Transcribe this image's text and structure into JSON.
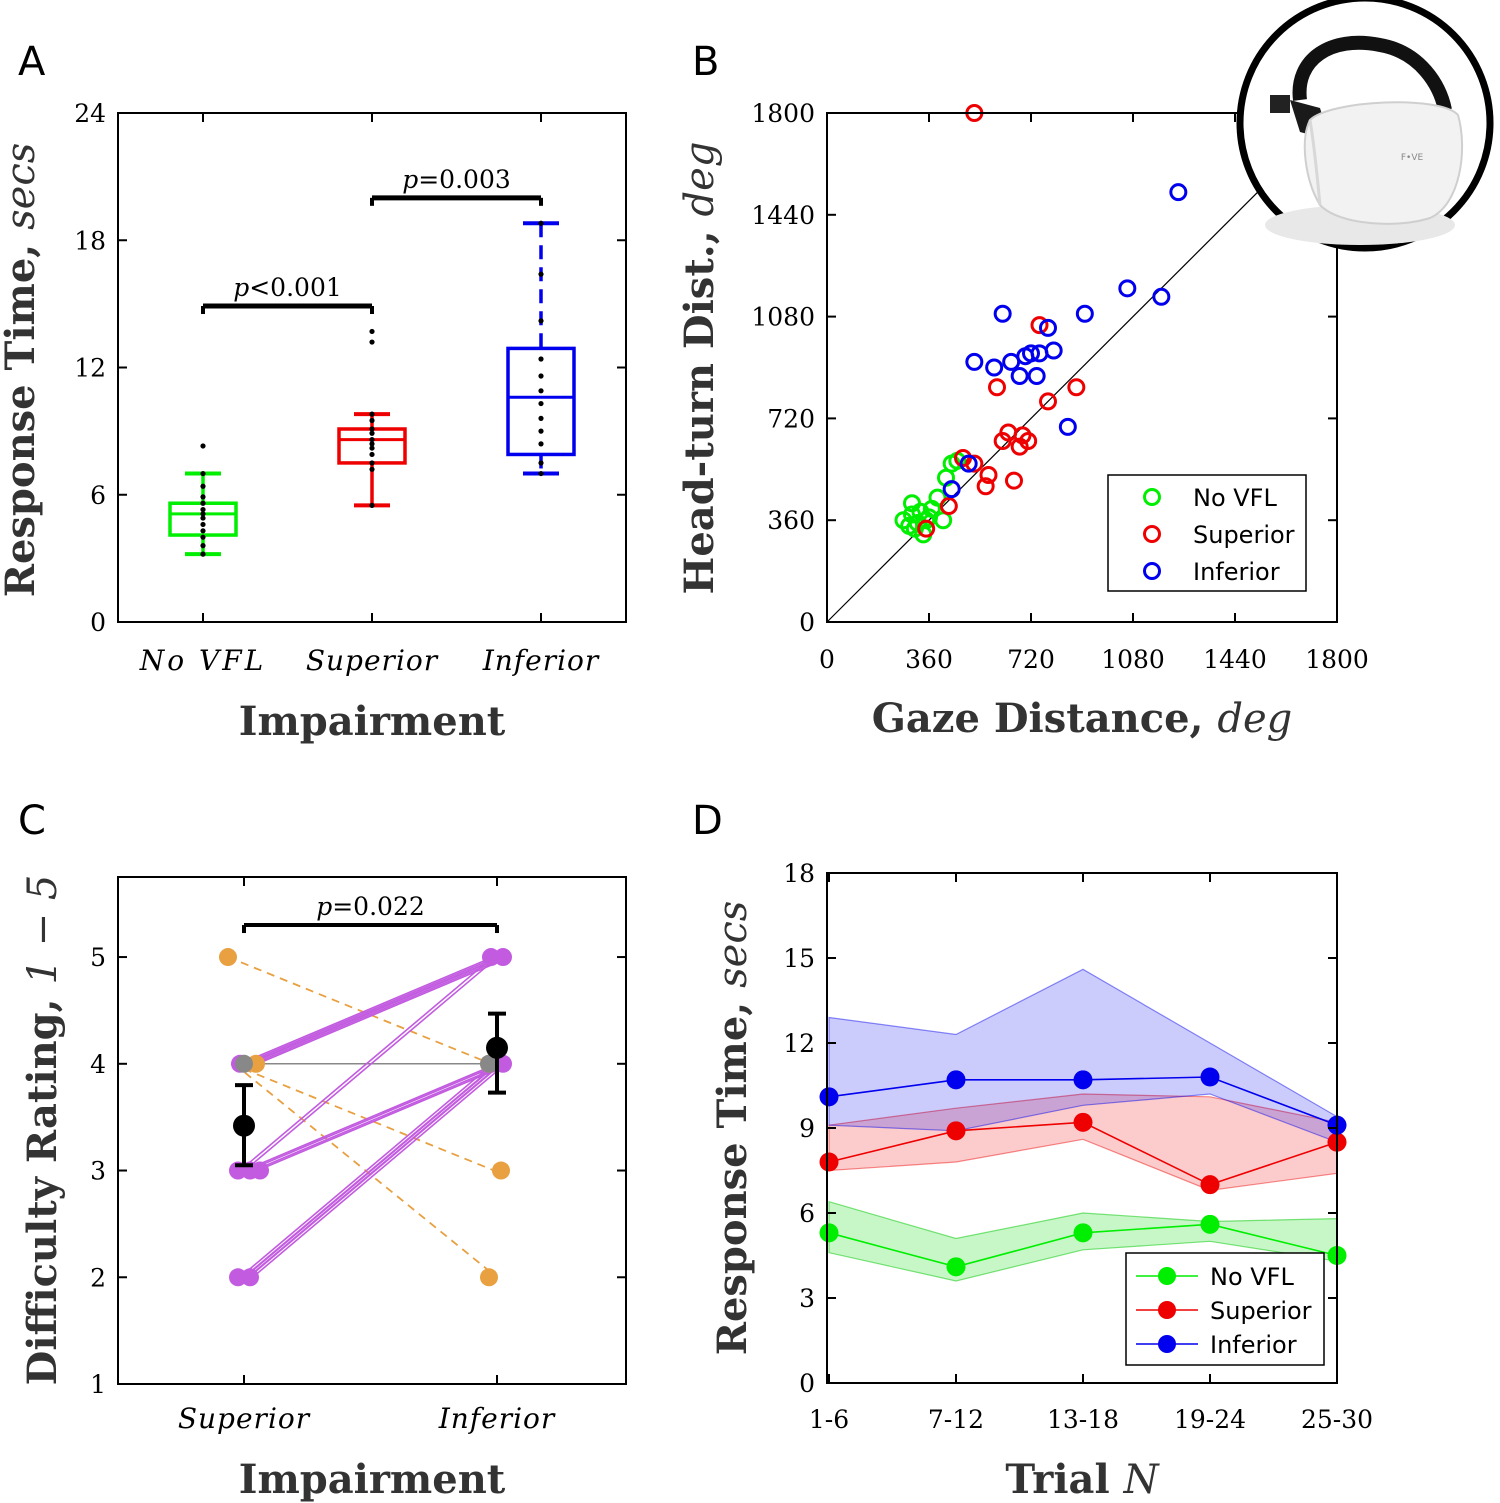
{
  "colors": {
    "green": "#00ee00",
    "red": "#ee0000",
    "blue": "#0000ee",
    "purple": "#c25be0",
    "orange": "#e8a040",
    "black": "#000000"
  },
  "chart_data": [
    {
      "panel": "A",
      "type": "box",
      "ylabel": "Response Time, ",
      "ylabel_unit": "secs",
      "xlabel": "Impairment",
      "ylim": [
        0,
        24
      ],
      "yticks": [
        "0",
        "6",
        "12",
        "18",
        "24"
      ],
      "categories": [
        "No VFL",
        "Superior",
        "Inferior"
      ],
      "boxes": [
        {
          "name": "No VFL",
          "color": "green",
          "whisker_low": 3.2,
          "q1": 4.1,
          "median": 5.1,
          "q3": 5.6,
          "whisker_high": 7.0,
          "points": [
            3.2,
            3.6,
            4.0,
            4.3,
            4.6,
            4.9,
            5.1,
            5.3,
            5.6,
            5.9,
            6.4,
            7.0,
            8.3
          ]
        },
        {
          "name": "Superior",
          "color": "red",
          "whisker_low": 5.5,
          "q1": 7.5,
          "median": 8.6,
          "q3": 9.1,
          "whisker_high": 9.8,
          "points": [
            5.5,
            7.2,
            7.5,
            7.9,
            8.2,
            8.4,
            8.6,
            8.9,
            9.1,
            9.5,
            9.8,
            13.2,
            13.7
          ]
        },
        {
          "name": "Inferior",
          "color": "blue",
          "whisker_low": 7.0,
          "q1": 7.9,
          "median": 10.6,
          "q3": 12.9,
          "whisker_high": 18.8,
          "points": [
            7.0,
            7.5,
            8.4,
            9.0,
            9.6,
            10.3,
            10.9,
            11.6,
            12.4,
            14.2,
            16.4,
            18.8
          ]
        }
      ],
      "comparisons": [
        {
          "from": "No VFL",
          "to": "Superior",
          "label": "p<0.001",
          "y": 14.9
        },
        {
          "from": "Superior",
          "to": "Inferior",
          "label": "p=0.003",
          "y": 20.0
        }
      ]
    },
    {
      "panel": "B",
      "type": "scatter",
      "xlabel": "Gaze Distance, ",
      "xlabel_unit": "deg",
      "ylabel": "Head-turn Dist., ",
      "ylabel_unit": "deg",
      "xlim": [
        0,
        1800
      ],
      "ylim": [
        0,
        1800
      ],
      "xticks": [
        "0",
        "360",
        "720",
        "1080",
        "1440",
        "1800"
      ],
      "yticks": [
        "0",
        "360",
        "720",
        "1080",
        "1440",
        "1800"
      ],
      "reference_line": "y = x",
      "legend": [
        "No VFL",
        "Superior",
        "Inferior"
      ],
      "series": [
        {
          "name": "No VFL",
          "color": "green",
          "points": [
            [
              270,
              360
            ],
            [
              290,
              340
            ],
            [
              310,
              330
            ],
            [
              300,
              420
            ],
            [
              330,
              390
            ],
            [
              340,
              310
            ],
            [
              350,
              360
            ],
            [
              370,
              400
            ],
            [
              390,
              440
            ],
            [
              410,
              360
            ],
            [
              420,
              510
            ],
            [
              440,
              560
            ],
            [
              460,
              570
            ],
            [
              300,
              380
            ],
            [
              320,
              350
            ],
            [
              360,
              370
            ]
          ]
        },
        {
          "name": "Superior",
          "color": "red",
          "points": [
            [
              520,
              1800
            ],
            [
              350,
              330
            ],
            [
              430,
              410
            ],
            [
              480,
              580
            ],
            [
              520,
              560
            ],
            [
              560,
              480
            ],
            [
              570,
              520
            ],
            [
              600,
              830
            ],
            [
              620,
              640
            ],
            [
              640,
              670
            ],
            [
              660,
              500
            ],
            [
              680,
              620
            ],
            [
              690,
              660
            ],
            [
              710,
              640
            ],
            [
              750,
              1050
            ],
            [
              780,
              780
            ],
            [
              880,
              830
            ]
          ]
        },
        {
          "name": "Inferior",
          "color": "blue",
          "points": [
            [
              440,
              470
            ],
            [
              500,
              560
            ],
            [
              520,
              920
            ],
            [
              590,
              900
            ],
            [
              620,
              1090
            ],
            [
              650,
              920
            ],
            [
              680,
              870
            ],
            [
              700,
              940
            ],
            [
              720,
              950
            ],
            [
              740,
              870
            ],
            [
              750,
              950
            ],
            [
              780,
              1040
            ],
            [
              800,
              960
            ],
            [
              850,
              690
            ],
            [
              910,
              1090
            ],
            [
              1060,
              1180
            ],
            [
              1180,
              1150
            ],
            [
              1240,
              1520
            ]
          ]
        }
      ],
      "inset_brand": "F•VE"
    },
    {
      "panel": "C",
      "type": "paired-dot",
      "ylabel": "Difficulty Rating, ",
      "ylabel_range": "1 − 5",
      "xlabel": "Impairment",
      "ylim": [
        1,
        5.75
      ],
      "yticks": [
        "1",
        "2",
        "3",
        "4",
        "5"
      ],
      "categories": [
        "Superior",
        "Inferior"
      ],
      "pairs_increase": [
        [
          4,
          5
        ],
        [
          4,
          5
        ],
        [
          4,
          5
        ],
        [
          3,
          5
        ],
        [
          3,
          4
        ],
        [
          3,
          4
        ],
        [
          2,
          4
        ],
        [
          2,
          4
        ],
        [
          2,
          4
        ],
        [
          4,
          4
        ]
      ],
      "pairs_decrease": [
        [
          5,
          4
        ],
        [
          4,
          3
        ],
        [
          4,
          2
        ],
        [
          4,
          4
        ]
      ],
      "means": [
        {
          "category": "Superior",
          "mean": 3.42,
          "low": 3.05,
          "high": 3.8
        },
        {
          "category": "Inferior",
          "mean": 4.15,
          "low": 3.73,
          "high": 4.47
        }
      ],
      "comparison": {
        "label": "p=0.022",
        "y": 5.3
      }
    },
    {
      "panel": "D",
      "type": "line",
      "xlabel": "Trial ",
      "xlabel_unit": "N",
      "ylabel": "Response Time, ",
      "ylabel_unit": "secs",
      "categories": [
        "1-6",
        "7-12",
        "13-18",
        "19-24",
        "25-30"
      ],
      "ylim": [
        0,
        18
      ],
      "yticks": [
        "0",
        "3",
        "6",
        "9",
        "12",
        "15",
        "18"
      ],
      "legend": [
        "No VFL",
        "Superior",
        "Inferior"
      ],
      "series": [
        {
          "name": "No VFL",
          "color": "green",
          "values": [
            5.3,
            4.1,
            5.3,
            5.6,
            4.5
          ],
          "low": [
            4.6,
            3.6,
            4.7,
            5.0,
            4.3
          ],
          "high": [
            6.4,
            5.1,
            6.0,
            5.7,
            5.8
          ]
        },
        {
          "name": "Superior",
          "color": "red",
          "values": [
            7.8,
            8.9,
            9.2,
            7.0,
            8.5
          ],
          "low": [
            7.5,
            7.8,
            8.6,
            6.8,
            7.4
          ],
          "high": [
            9.1,
            9.7,
            10.2,
            10.1,
            9.2
          ]
        },
        {
          "name": "Inferior",
          "color": "blue",
          "values": [
            10.1,
            10.7,
            10.7,
            10.8,
            9.1
          ],
          "low": [
            9.1,
            8.9,
            9.8,
            10.2,
            8.5
          ],
          "high": [
            12.9,
            12.3,
            14.6,
            12.0,
            9.4
          ]
        }
      ]
    }
  ]
}
